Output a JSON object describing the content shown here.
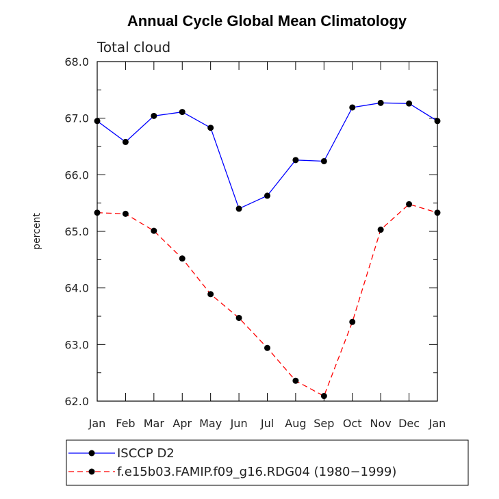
{
  "chart_data": {
    "type": "line",
    "title": "Annual Cycle Global Mean Climatology",
    "subtitle": "Total cloud",
    "xlabel": "",
    "ylabel": "percent",
    "categories": [
      "Jan",
      "Feb",
      "Mar",
      "Apr",
      "May",
      "Jun",
      "Jul",
      "Aug",
      "Sep",
      "Oct",
      "Nov",
      "Dec",
      "Jan"
    ],
    "ylim": [
      62.0,
      68.0
    ],
    "yticks": [
      "62.0",
      "63.0",
      "64.0",
      "65.0",
      "66.0",
      "67.0",
      "68.0"
    ],
    "series": [
      {
        "name": "ISCCP D2",
        "color": "#0000ff",
        "dash": "solid",
        "values": [
          66.95,
          66.58,
          67.04,
          67.11,
          66.83,
          65.4,
          65.63,
          66.26,
          66.24,
          67.19,
          67.27,
          67.26,
          66.95
        ]
      },
      {
        "name": "f.e15b03.FAMIP.f09_g16.RDG04 (1980−1999)",
        "color": "#ff0000",
        "dash": "dashed",
        "values": [
          65.33,
          65.31,
          65.01,
          64.52,
          63.89,
          63.47,
          62.94,
          62.36,
          62.09,
          63.4,
          65.03,
          65.48,
          65.33
        ]
      }
    ],
    "legend_position": "bottom"
  }
}
